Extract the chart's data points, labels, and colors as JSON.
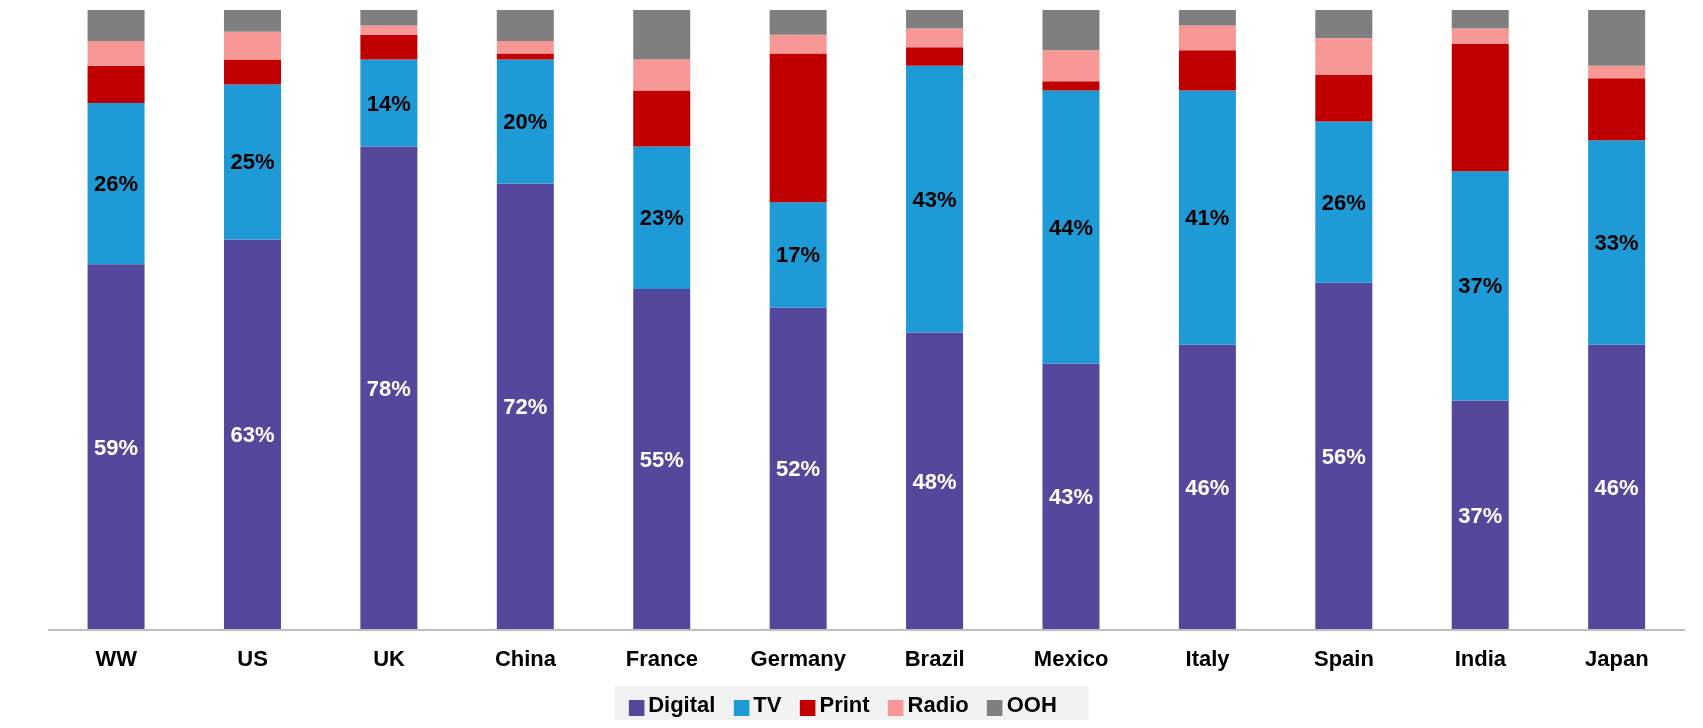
{
  "chart_data": {
    "type": "bar",
    "stacked": true,
    "legend": "bottom",
    "grid": false,
    "categories": [
      "WW",
      "US",
      "UK",
      "China",
      "France",
      "Germany",
      "Brazil",
      "Mexico",
      "Italy",
      "Spain",
      "India",
      "Japan"
    ],
    "series": [
      {
        "name": "Digital",
        "color": "#55489c",
        "values": [
          59,
          63,
          78,
          72,
          55,
          52,
          48,
          43,
          46,
          56,
          37,
          46
        ],
        "value_labels": [
          "59%",
          "63%",
          "78%",
          "72%",
          "55%",
          "52%",
          "48%",
          "43%",
          "46%",
          "56%",
          "37%",
          "46%"
        ]
      },
      {
        "name": "TV",
        "color": "#1e9ad6",
        "values": [
          26,
          25,
          14,
          20,
          23,
          17,
          43,
          44,
          41,
          26,
          37,
          33
        ],
        "value_labels": [
          "26%",
          "25%",
          "14%",
          "20%",
          "23%",
          "17%",
          "43%",
          "44%",
          "41%",
          "26%",
          "37%",
          "33%"
        ]
      },
      {
        "name": "Print",
        "color": "#c00000",
        "values": [
          6,
          4,
          4,
          1,
          9,
          24,
          3,
          1.5,
          6.5,
          7.5,
          20.5,
          10
        ]
      },
      {
        "name": "Radio",
        "color": "#f79796",
        "values": [
          4,
          4.5,
          1.5,
          2,
          5,
          3,
          3,
          5,
          4,
          6,
          2.5,
          2
        ]
      },
      {
        "name": "OOH",
        "color": "#7f7f7f",
        "values": [
          5,
          3.5,
          2.5,
          5,
          8,
          4,
          3,
          6.5,
          2.5,
          4.5,
          3,
          9
        ]
      }
    ]
  }
}
